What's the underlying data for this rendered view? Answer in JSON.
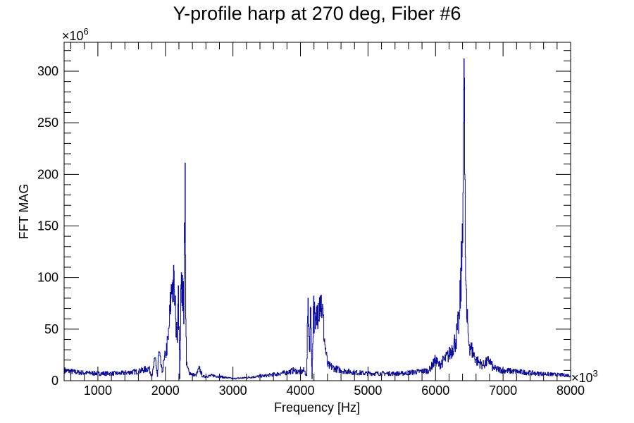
{
  "chart_data": {
    "type": "line",
    "title": "Y-profile harp at 270 deg, Fiber #6",
    "xlabel": "Frequency [Hz]",
    "ylabel": "FFT MAG",
    "x_multiplier_label": "×10",
    "x_multiplier_exp": "3",
    "y_multiplier_label": "×10",
    "y_multiplier_exp": "6",
    "xlim": [
      500,
      8000
    ],
    "ylim": [
      0,
      328
    ],
    "x_ticks": [
      "1000",
      "2000",
      "3000",
      "4000",
      "5000",
      "6000",
      "7000",
      "8000"
    ],
    "y_ticks": [
      "0",
      "50",
      "100",
      "150",
      "200",
      "250",
      "300"
    ],
    "grid": false,
    "line_color": "#0a0a9e",
    "series": [
      {
        "name": "FFT MAG",
        "points": [
          [
            500,
            10
          ],
          [
            700,
            8
          ],
          [
            1000,
            7
          ],
          [
            1300,
            7
          ],
          [
            1600,
            9
          ],
          [
            1750,
            12
          ],
          [
            1800,
            5
          ],
          [
            1850,
            22
          ],
          [
            1880,
            4
          ],
          [
            1900,
            28
          ],
          [
            1950,
            8
          ],
          [
            1980,
            20
          ],
          [
            2000,
            25
          ],
          [
            2040,
            40
          ],
          [
            2080,
            80
          ],
          [
            2100,
            95
          ],
          [
            2130,
            88
          ],
          [
            2150,
            60
          ],
          [
            2170,
            40
          ],
          [
            2190,
            92
          ],
          [
            2210,
            2
          ],
          [
            2230,
            93
          ],
          [
            2260,
            96
          ],
          [
            2270,
            55
          ],
          [
            2290,
            211
          ],
          [
            2300,
            60
          ],
          [
            2310,
            15
          ],
          [
            2350,
            8
          ],
          [
            2400,
            6
          ],
          [
            2450,
            5
          ],
          [
            2500,
            12
          ],
          [
            2550,
            4
          ],
          [
            2700,
            5
          ],
          [
            2900,
            3
          ],
          [
            3000,
            2
          ],
          [
            3200,
            3
          ],
          [
            3500,
            5
          ],
          [
            3800,
            8
          ],
          [
            3900,
            10
          ],
          [
            4000,
            8
          ],
          [
            4050,
            10
          ],
          [
            4090,
            5
          ],
          [
            4110,
            80
          ],
          [
            4130,
            30
          ],
          [
            4150,
            70
          ],
          [
            4170,
            2
          ],
          [
            4190,
            72
          ],
          [
            4220,
            50
          ],
          [
            4260,
            75
          ],
          [
            4290,
            82
          ],
          [
            4320,
            70
          ],
          [
            4360,
            35
          ],
          [
            4400,
            15
          ],
          [
            4500,
            12
          ],
          [
            4600,
            10
          ],
          [
            4800,
            8
          ],
          [
            5000,
            7
          ],
          [
            5500,
            7
          ],
          [
            5900,
            10
          ],
          [
            6000,
            20
          ],
          [
            6050,
            15
          ],
          [
            6200,
            25
          ],
          [
            6300,
            40
          ],
          [
            6350,
            60
          ],
          [
            6390,
            120
          ],
          [
            6410,
            250
          ],
          [
            6420,
            312
          ],
          [
            6430,
            200
          ],
          [
            6440,
            120
          ],
          [
            6460,
            60
          ],
          [
            6500,
            35
          ],
          [
            6600,
            20
          ],
          [
            6700,
            15
          ],
          [
            6800,
            20
          ],
          [
            6850,
            12
          ],
          [
            7000,
            10
          ],
          [
            7500,
            7
          ],
          [
            8000,
            5
          ]
        ]
      }
    ]
  }
}
